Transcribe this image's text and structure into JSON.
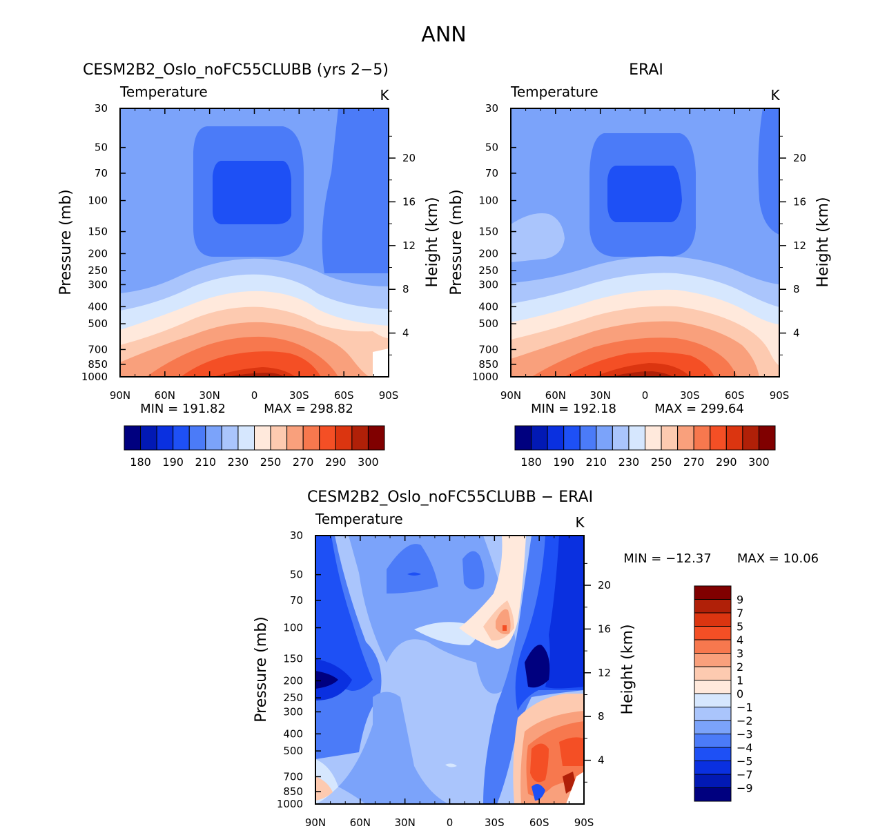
{
  "page_title": "ANN",
  "chart_data": [
    {
      "type": "heatmap",
      "title": "CESM2B2_Oslo_noFC55CLUBB (yrs 2-5)",
      "variable": "Temperature",
      "units": "K",
      "xlabel": "",
      "ylabel_left": "Pressure (mb)",
      "ylabel_right": "Height (km)",
      "x_ticks": [
        "90N",
        "60N",
        "30N",
        "0",
        "30S",
        "60S",
        "90S"
      ],
      "pressure_ticks": [
        30,
        50,
        70,
        100,
        150,
        200,
        250,
        300,
        400,
        500,
        700,
        850,
        1000
      ],
      "height_ticks": [
        4,
        8,
        12,
        16,
        20
      ],
      "min_label": "MIN = 191.82",
      "max_label": "MAX = 298.82",
      "min": 191.82,
      "max": 298.82,
      "colorbar_labels": [
        "180",
        "190",
        "210",
        "230",
        "250",
        "270",
        "290",
        "300"
      ],
      "colorbar_colors": [
        "#00007f",
        "#0219b4",
        "#0a30e0",
        "#1e50f5",
        "#4b7bf8",
        "#7ba3fa",
        "#aac5fc",
        "#d6e7fe",
        "#ffe9dc",
        "#fdcab0",
        "#f9a07c",
        "#f7784e",
        "#f44f25",
        "#db3510",
        "#b02008",
        "#800000"
      ]
    },
    {
      "type": "heatmap",
      "title": "ERAI",
      "variable": "Temperature",
      "units": "K",
      "xlabel": "",
      "ylabel_left": "Pressure (mb)",
      "ylabel_right": "Height (km)",
      "x_ticks": [
        "90N",
        "60N",
        "30N",
        "0",
        "30S",
        "60S",
        "90S"
      ],
      "pressure_ticks": [
        30,
        50,
        70,
        100,
        150,
        200,
        250,
        300,
        400,
        500,
        700,
        850,
        1000
      ],
      "height_ticks": [
        4,
        8,
        12,
        16,
        20
      ],
      "min_label": "MIN = 192.18",
      "max_label": "MAX = 299.64",
      "min": 192.18,
      "max": 299.64,
      "colorbar_labels": [
        "180",
        "190",
        "210",
        "230",
        "250",
        "270",
        "290",
        "300"
      ],
      "colorbar_colors": [
        "#00007f",
        "#0219b4",
        "#0a30e0",
        "#1e50f5",
        "#4b7bf8",
        "#7ba3fa",
        "#aac5fc",
        "#d6e7fe",
        "#ffe9dc",
        "#fdcab0",
        "#f9a07c",
        "#f7784e",
        "#f44f25",
        "#db3510",
        "#b02008",
        "#800000"
      ]
    },
    {
      "type": "heatmap",
      "title": "CESM2B2_Oslo_noFC55CLUBB - ERAI",
      "variable": "Temperature",
      "units": "K",
      "xlabel": "",
      "ylabel_left": "Pressure (mb)",
      "ylabel_right": "Height (km)",
      "x_ticks": [
        "90N",
        "60N",
        "30N",
        "0",
        "30S",
        "60S",
        "90S"
      ],
      "pressure_ticks": [
        30,
        50,
        70,
        100,
        150,
        200,
        250,
        300,
        400,
        500,
        700,
        850,
        1000
      ],
      "height_ticks": [
        4,
        8,
        12,
        16,
        20
      ],
      "min_label": "MIN = -12.37",
      "max_label": "MAX = 10.06",
      "min": -12.37,
      "max": 10.06,
      "colorbar_labels": [
        "9",
        "7",
        "5",
        "4",
        "3",
        "2",
        "1",
        "0",
        "-1",
        "-2",
        "-3",
        "-4",
        "-5",
        "-7",
        "-9"
      ],
      "colorbar_colors": [
        "#800000",
        "#b02008",
        "#db3510",
        "#f44f25",
        "#f7784e",
        "#f9a07c",
        "#fdcab0",
        "#ffe9dc",
        "#d6e7fe",
        "#aac5fc",
        "#7ba3fa",
        "#4b7bf8",
        "#1e50f5",
        "#0a30e0",
        "#0219b4",
        "#00007f"
      ]
    }
  ]
}
